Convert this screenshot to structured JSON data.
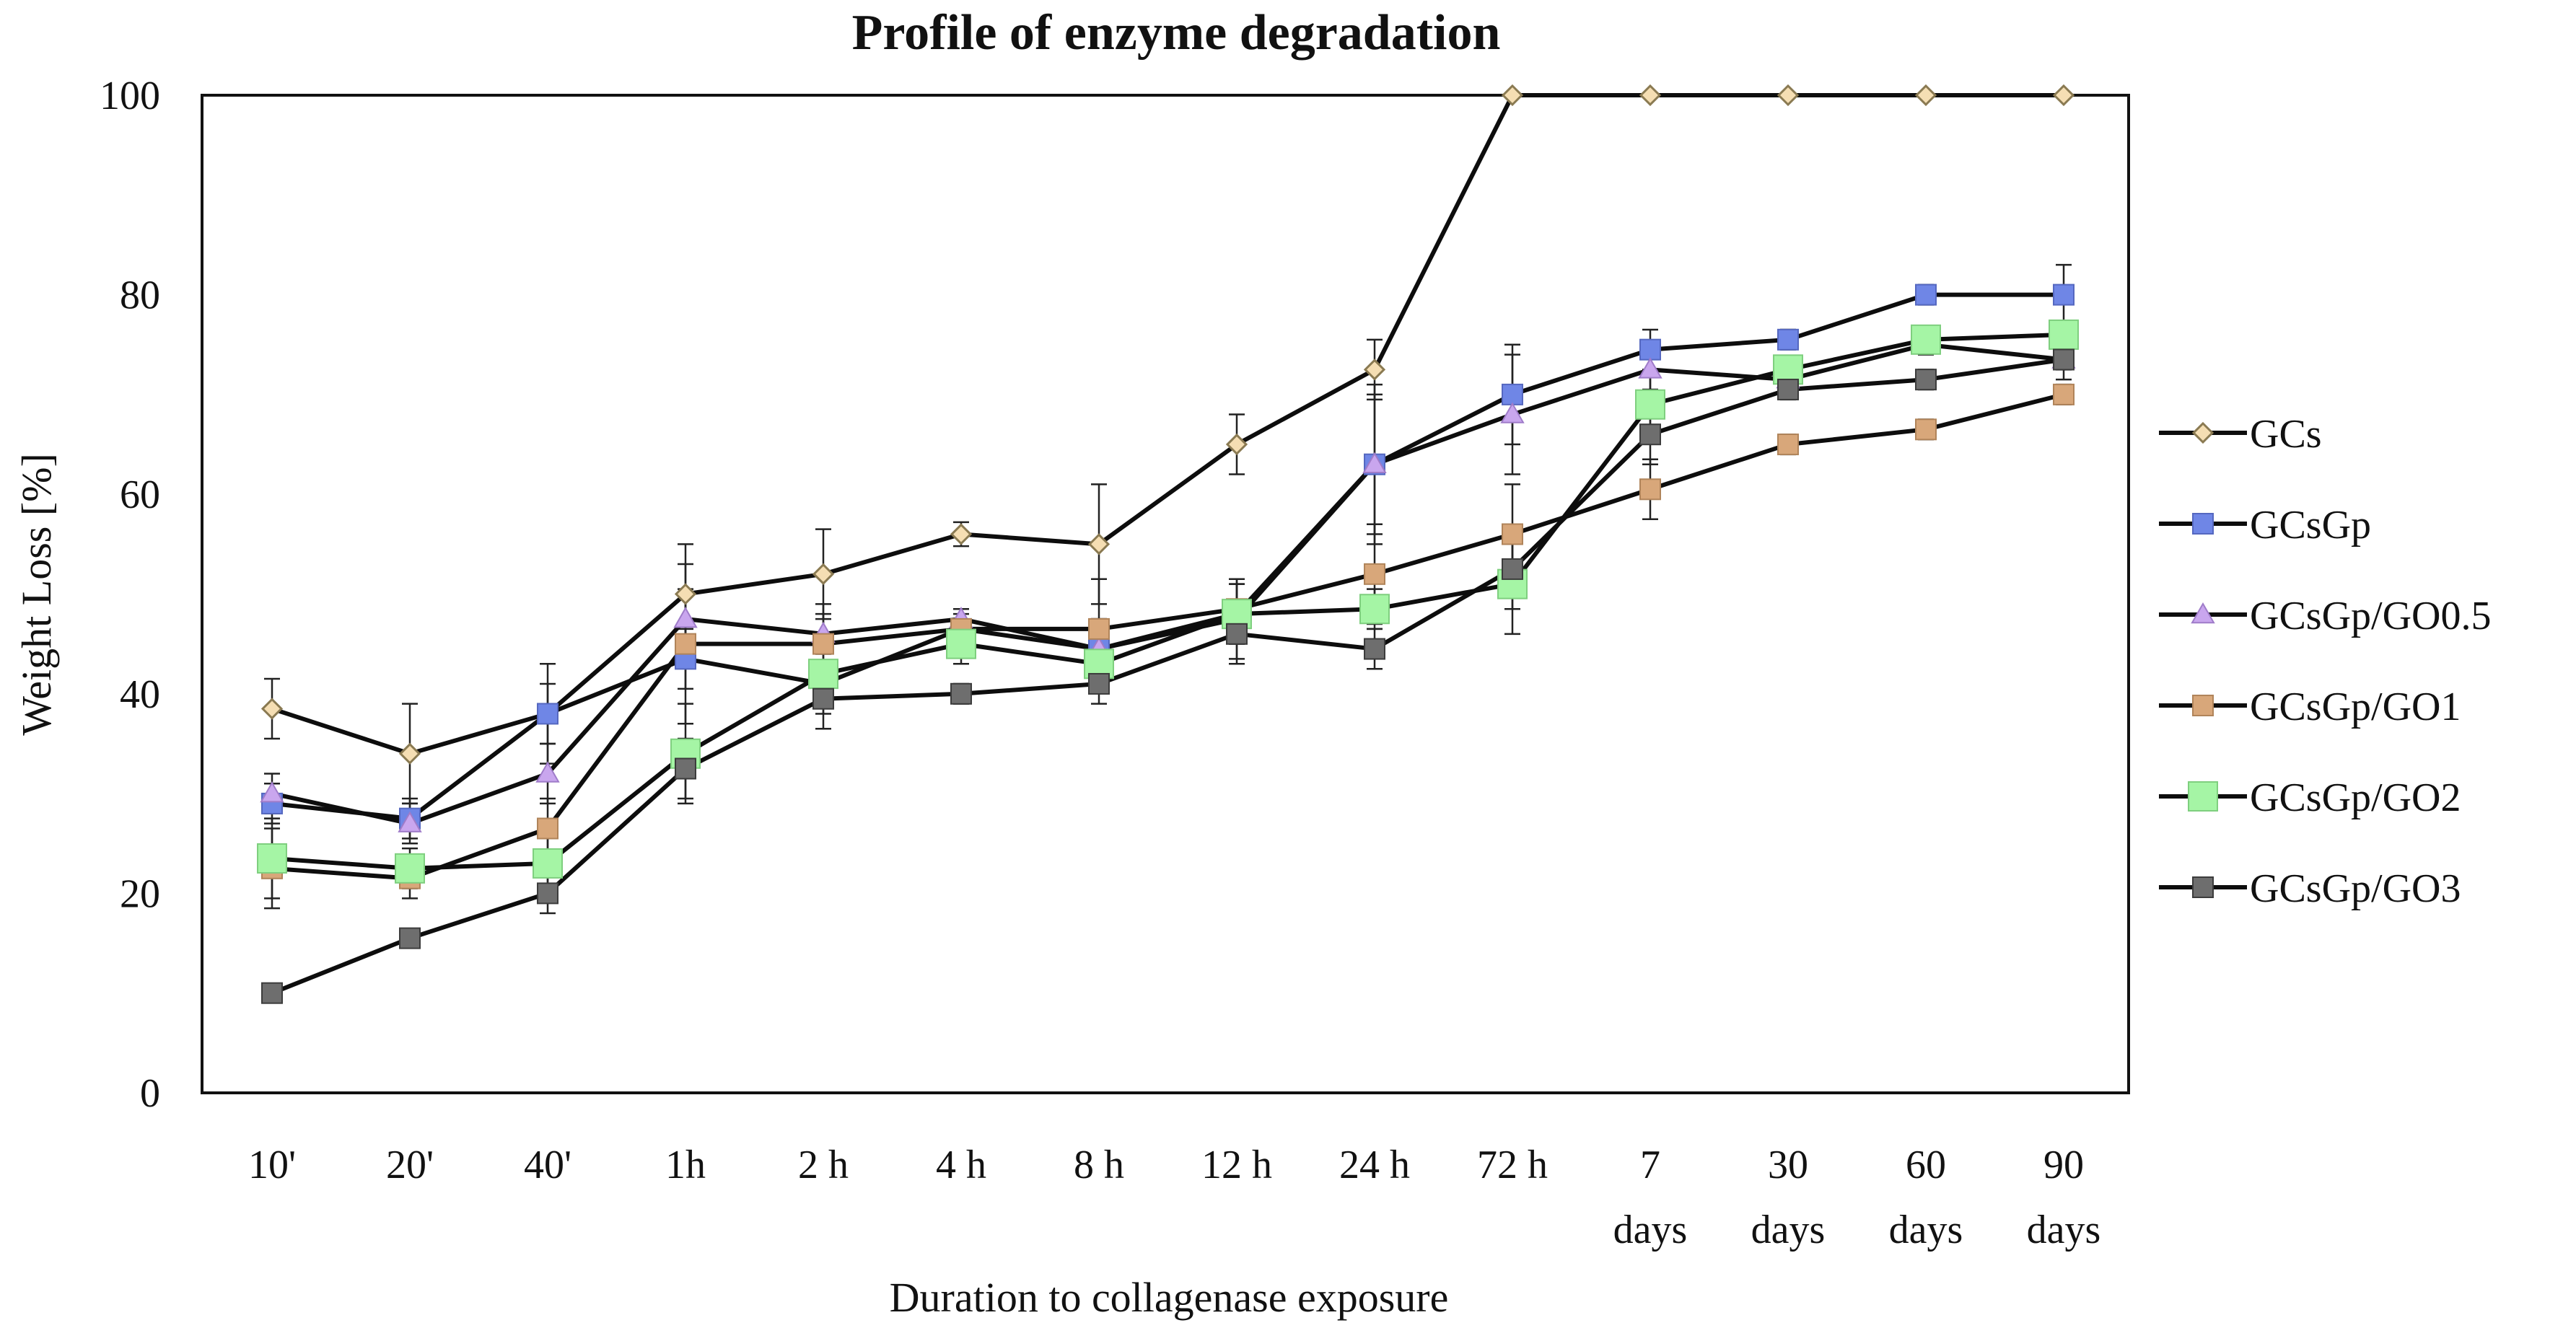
{
  "chart_data": {
    "type": "line",
    "title": "Profile of enzyme degradation",
    "xlabel": "Duration to collagenase exposure",
    "ylabel": "Weight Loss [%]",
    "ylim": [
      0,
      100
    ],
    "yticks": [
      "0",
      "20",
      "40",
      "60",
      "80",
      "100"
    ],
    "grid": false,
    "legend_position": "right",
    "categories": [
      [
        "10'"
      ],
      [
        "20'"
      ],
      [
        "40'"
      ],
      [
        "1h"
      ],
      [
        "2 h"
      ],
      [
        "4 h"
      ],
      [
        "8 h"
      ],
      [
        "12 h"
      ],
      [
        "24 h"
      ],
      [
        "72 h"
      ],
      [
        "7",
        "days"
      ],
      [
        "30",
        "days"
      ],
      [
        "60",
        "days"
      ],
      [
        "90",
        "days"
      ]
    ],
    "series": [
      {
        "name": "GCs",
        "marker": "diamond",
        "color": "#f5deb3",
        "stroke": "#8a7a52",
        "values": [
          38.5,
          34,
          38,
          50,
          52,
          56,
          55,
          65,
          72.5,
          100,
          100,
          100,
          100,
          100
        ],
        "errors": [
          3,
          5,
          5,
          5,
          4.5,
          1.2,
          6,
          3,
          3,
          0,
          0,
          0,
          0,
          0
        ]
      },
      {
        "name": "GCsGp",
        "marker": "square",
        "color": "#6f86e6",
        "stroke": "#5568c0",
        "values": [
          29,
          27.5,
          38,
          43.5,
          41,
          46.5,
          44.5,
          48,
          63,
          70,
          74.5,
          75.5,
          80,
          80
        ],
        "errors": [
          2,
          2,
          3,
          3,
          2,
          1.5,
          3,
          3,
          8,
          5,
          2,
          1,
          1,
          3
        ]
      },
      {
        "name": "GCsGp/GO0.5",
        "marker": "triangle",
        "color": "#c9a6ee",
        "stroke": "#9f7cc9",
        "values": [
          30,
          27,
          32,
          47.5,
          46,
          47.5,
          44.5,
          47.5,
          63,
          68,
          72.5,
          71.5,
          75,
          73.5
        ],
        "errors": [
          2,
          2,
          3,
          3,
          2,
          1,
          3,
          4,
          7,
          6,
          2,
          1,
          1,
          2
        ]
      },
      {
        "name": "GCsGp/GO1",
        "marker": "square",
        "color": "#d8a77a",
        "stroke": "#b0845a",
        "values": [
          22.5,
          21.5,
          26.5,
          45,
          45,
          46.5,
          46.5,
          48.5,
          52,
          56,
          60.5,
          65,
          66.5,
          70
        ],
        "errors": [
          4,
          2,
          3,
          8,
          4,
          2,
          5,
          3,
          5,
          5,
          3,
          1,
          1,
          1
        ]
      },
      {
        "name": "GCsGp/GO2",
        "marker": "square-large",
        "color": "#a5f5a5",
        "stroke": "#7fcf7f",
        "values": [
          23.5,
          22.5,
          23,
          34,
          42,
          45,
          43,
          48,
          48.5,
          51,
          69,
          72.5,
          75.5,
          76
        ],
        "errors": [
          4,
          2,
          3,
          5,
          4,
          2,
          2,
          3,
          2,
          5,
          3,
          1,
          1,
          1
        ]
      },
      {
        "name": "GCsGp/GO3",
        "marker": "square",
        "color": "#6e6e6e",
        "stroke": "#3c3c3c",
        "values": [
          10,
          15.5,
          20,
          32.5,
          39.5,
          40,
          41,
          46,
          44.5,
          52.5,
          66,
          70.5,
          71.5,
          73.5
        ],
        "errors": [
          0,
          0,
          2,
          3,
          3,
          1,
          2,
          3,
          2,
          4,
          3,
          1,
          1,
          1
        ]
      }
    ]
  }
}
